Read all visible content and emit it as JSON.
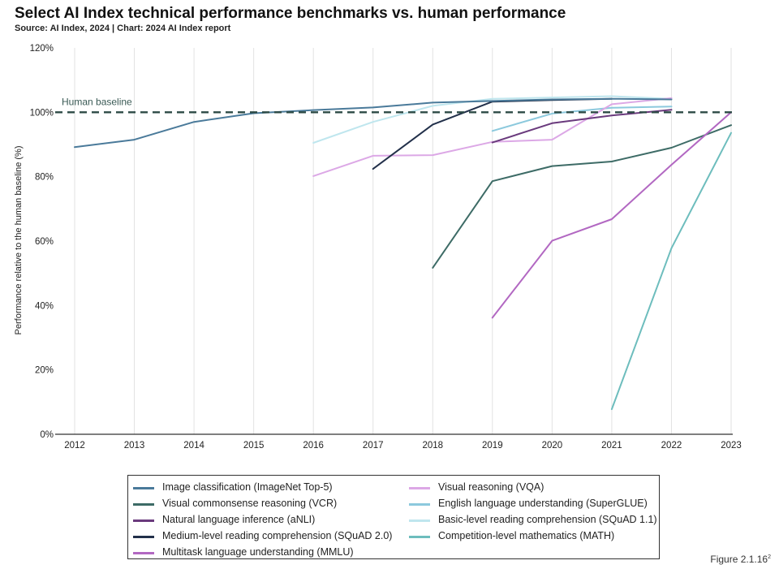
{
  "chart_data": {
    "type": "line",
    "title": "Select AI Index technical performance benchmarks vs. human performance",
    "subtitle": "Source: AI Index, 2024 | Chart: 2024 AI Index report",
    "ylabel": "Performance relative to the human baseline (%)",
    "xlabel": "",
    "xlim": [
      2012,
      2023
    ],
    "ylim": [
      0,
      120
    ],
    "x_ticks": [
      "2012",
      "2013",
      "2014",
      "2015",
      "2016",
      "2017",
      "2018",
      "2019",
      "2020",
      "2021",
      "2022",
      "2023"
    ],
    "y_ticks": [
      "0%",
      "20%",
      "40%",
      "60%",
      "80%",
      "100%",
      "120%"
    ],
    "grid": "vertical",
    "legend_position": "bottom",
    "baseline": {
      "label": "Human baseline",
      "value": 100,
      "color": "#2c4a45"
    },
    "series": [
      {
        "name": "Image classification (ImageNet Top-5)",
        "color": "#4a7a9a",
        "points": [
          [
            2012,
            89.2
          ],
          [
            2013,
            91.5
          ],
          [
            2014,
            97
          ],
          [
            2015,
            99.7
          ],
          [
            2016,
            100.7
          ],
          [
            2017,
            101.5
          ],
          [
            2018,
            103
          ],
          [
            2019,
            103.5
          ],
          [
            2020,
            104
          ],
          [
            2021,
            104.2
          ],
          [
            2022,
            104
          ]
        ]
      },
      {
        "name": "Visual commonsense reasoning (VCR)",
        "color": "#3d6b66",
        "points": [
          [
            2018,
            51.7
          ],
          [
            2019,
            78.6
          ],
          [
            2020,
            83.3
          ],
          [
            2021,
            84.7
          ],
          [
            2022,
            89
          ],
          [
            2023,
            96
          ]
        ]
      },
      {
        "name": "Natural language inference (aNLI)",
        "color": "#6a3a7d",
        "points": [
          [
            2019,
            90.6
          ],
          [
            2020,
            96.6
          ],
          [
            2021,
            99
          ],
          [
            2022,
            100.8
          ]
        ]
      },
      {
        "name": "Medium-level reading comprehension (SQuAD 2.0)",
        "color": "#22304a",
        "points": [
          [
            2017,
            82.4
          ],
          [
            2018,
            96.2
          ],
          [
            2019,
            103.3
          ],
          [
            2020,
            103.8
          ],
          [
            2021,
            104.2
          ]
        ]
      },
      {
        "name": "Multitask language understanding (MMLU)",
        "color": "#b268c2",
        "points": [
          [
            2019,
            36.2
          ],
          [
            2020,
            60.1
          ],
          [
            2021,
            66.8
          ],
          [
            2022,
            83.7
          ],
          [
            2023,
            100
          ]
        ]
      },
      {
        "name": "Visual reasoning (VQA)",
        "color": "#dca8e6",
        "points": [
          [
            2016,
            80.2
          ],
          [
            2017,
            86.5
          ],
          [
            2018,
            86.7
          ],
          [
            2019,
            90.8
          ],
          [
            2020,
            91.5
          ],
          [
            2021,
            102.5
          ],
          [
            2022,
            104.4
          ]
        ]
      },
      {
        "name": "English language understanding (SuperGLUE)",
        "color": "#8cc9dd",
        "points": [
          [
            2019,
            94.2
          ],
          [
            2020,
            99.6
          ],
          [
            2021,
            101.4
          ],
          [
            2022,
            101.8
          ]
        ]
      },
      {
        "name": "Basic-level reading comprehension (SQuAD 1.1)",
        "color": "#bfe6ee",
        "points": [
          [
            2016,
            90.5
          ],
          [
            2017,
            97
          ],
          [
            2018,
            102
          ],
          [
            2019,
            104.2
          ],
          [
            2020,
            104.6
          ],
          [
            2021,
            105
          ],
          [
            2022,
            104.2
          ]
        ]
      },
      {
        "name": "Competition-level mathematics (MATH)",
        "color": "#6dbdbd",
        "points": [
          [
            2021,
            7.8
          ],
          [
            2022,
            57.8
          ],
          [
            2023,
            93.6
          ]
        ]
      }
    ],
    "legend_columns": [
      [
        0,
        1,
        2,
        3,
        4
      ],
      [
        5,
        6,
        7,
        8
      ]
    ]
  },
  "figure_note": "Figure 2.1.16",
  "figure_note_sup": "2"
}
